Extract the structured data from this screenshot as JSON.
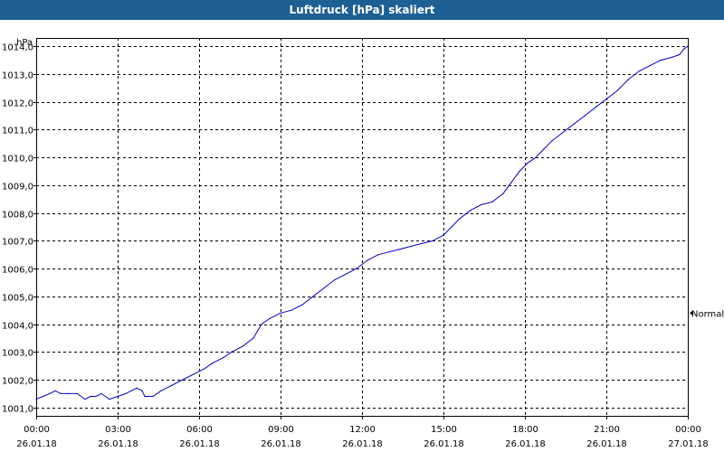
{
  "window": {
    "title": "Luftdruck [hPa] skaliert"
  },
  "chart_data": {
    "type": "line",
    "title": "Luftdruck [hPa] skaliert",
    "ylabel": "hPa",
    "xlabel": "",
    "ylim": [
      1000.7,
      1014.3
    ],
    "xlim": [
      0,
      24
    ],
    "y_ticks": [
      "1001,0",
      "1002,0",
      "1003,0",
      "1004,0",
      "1005,0",
      "1006,0",
      "1007,0",
      "1008,0",
      "1009,0",
      "1010,0",
      "1011,0",
      "1012,0",
      "1013,0",
      "1014,0"
    ],
    "y_tick_values": [
      1001,
      1002,
      1003,
      1004,
      1005,
      1006,
      1007,
      1008,
      1009,
      1010,
      1011,
      1012,
      1013,
      1014
    ],
    "x_ticks": [
      {
        "time": "00:00",
        "date": "26.01.18",
        "hour": 0
      },
      {
        "time": "03:00",
        "date": "26.01.18",
        "hour": 3
      },
      {
        "time": "06:00",
        "date": "26.01.18",
        "hour": 6
      },
      {
        "time": "09:00",
        "date": "26.01.18",
        "hour": 9
      },
      {
        "time": "12:00",
        "date": "26.01.18",
        "hour": 12
      },
      {
        "time": "15:00",
        "date": "26.01.18",
        "hour": 15
      },
      {
        "time": "18:00",
        "date": "26.01.18",
        "hour": 18
      },
      {
        "time": "21:00",
        "date": "26.01.18",
        "hour": 21
      },
      {
        "time": "00:00",
        "date": "27.01.18",
        "hour": 24
      }
    ],
    "grid": true,
    "marker_label": "Normal",
    "marker_value": 1004.4,
    "line_color": "#0000cc",
    "series": [
      {
        "points": [
          [
            0,
            1001.3
          ],
          [
            0.25,
            1001.4
          ],
          [
            0.5,
            1001.5
          ],
          [
            0.7,
            1001.6
          ],
          [
            0.9,
            1001.5
          ],
          [
            1.2,
            1001.5
          ],
          [
            1.5,
            1001.5
          ],
          [
            1.8,
            1001.3
          ],
          [
            2.0,
            1001.4
          ],
          [
            2.2,
            1001.4
          ],
          [
            2.4,
            1001.5
          ],
          [
            2.7,
            1001.3
          ],
          [
            3.0,
            1001.4
          ],
          [
            3.3,
            1001.5
          ],
          [
            3.5,
            1001.6
          ],
          [
            3.7,
            1001.7
          ],
          [
            3.9,
            1001.6
          ],
          [
            4.0,
            1001.4
          ],
          [
            4.3,
            1001.4
          ],
          [
            4.6,
            1001.6
          ],
          [
            5.0,
            1001.8
          ],
          [
            5.4,
            1002.0
          ],
          [
            5.8,
            1002.2
          ],
          [
            6.2,
            1002.4
          ],
          [
            6.5,
            1002.6
          ],
          [
            6.9,
            1002.8
          ],
          [
            7.2,
            1003.0
          ],
          [
            7.6,
            1003.2
          ],
          [
            8.0,
            1003.5
          ],
          [
            8.3,
            1004.0
          ],
          [
            8.6,
            1004.2
          ],
          [
            9.0,
            1004.4
          ],
          [
            9.4,
            1004.5
          ],
          [
            9.8,
            1004.7
          ],
          [
            10.2,
            1005.0
          ],
          [
            10.6,
            1005.3
          ],
          [
            11.0,
            1005.6
          ],
          [
            11.4,
            1005.8
          ],
          [
            11.8,
            1006.0
          ],
          [
            12.2,
            1006.3
          ],
          [
            12.6,
            1006.5
          ],
          [
            13.0,
            1006.6
          ],
          [
            13.4,
            1006.7
          ],
          [
            13.8,
            1006.8
          ],
          [
            14.2,
            1006.9
          ],
          [
            14.6,
            1007.0
          ],
          [
            15.0,
            1007.2
          ],
          [
            15.3,
            1007.5
          ],
          [
            15.6,
            1007.8
          ],
          [
            16.0,
            1008.1
          ],
          [
            16.4,
            1008.3
          ],
          [
            16.8,
            1008.4
          ],
          [
            17.2,
            1008.7
          ],
          [
            17.5,
            1009.1
          ],
          [
            17.8,
            1009.5
          ],
          [
            18.1,
            1009.8
          ],
          [
            18.4,
            1010.0
          ],
          [
            18.7,
            1010.3
          ],
          [
            19.0,
            1010.6
          ],
          [
            19.4,
            1010.9
          ],
          [
            19.8,
            1011.2
          ],
          [
            20.2,
            1011.5
          ],
          [
            20.6,
            1011.8
          ],
          [
            21.0,
            1012.1
          ],
          [
            21.4,
            1012.4
          ],
          [
            21.8,
            1012.8
          ],
          [
            22.2,
            1013.1
          ],
          [
            22.6,
            1013.3
          ],
          [
            23.0,
            1013.5
          ],
          [
            23.4,
            1013.6
          ],
          [
            23.7,
            1013.7
          ],
          [
            23.85,
            1013.9
          ],
          [
            24.0,
            1014.0
          ]
        ]
      }
    ]
  }
}
